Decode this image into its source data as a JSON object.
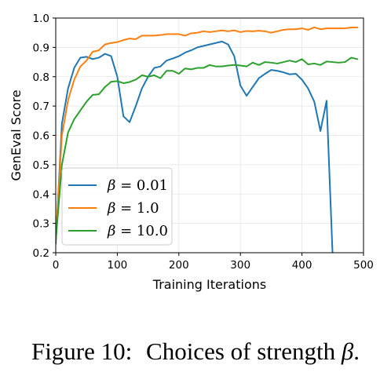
{
  "caption": {
    "label": "Figure 10:",
    "text": "Choices of strength",
    "symbol": "β",
    "end": "."
  },
  "chart_data": {
    "type": "line",
    "title": "",
    "xlabel": "Training Iterations",
    "ylabel": "GenEval Score",
    "xlim": [
      0,
      500
    ],
    "ylim": [
      0.2,
      1.0
    ],
    "xticks": [
      0,
      100,
      200,
      300,
      400,
      500
    ],
    "yticks": [
      0.2,
      0.3,
      0.4,
      0.5,
      0.6,
      0.7,
      0.8,
      0.9,
      1.0
    ],
    "grid": true,
    "legend_position": "lower-left",
    "series": [
      {
        "name": "β = 0.01",
        "symbol": "β",
        "value_label": "= 0.01",
        "color": "#1f77b4",
        "x": [
          0,
          10,
          20,
          30,
          40,
          50,
          60,
          70,
          80,
          90,
          100,
          110,
          120,
          130,
          140,
          150,
          160,
          170,
          180,
          190,
          200,
          210,
          220,
          230,
          240,
          250,
          260,
          270,
          280,
          290,
          300,
          310,
          320,
          330,
          340,
          350,
          360,
          370,
          380,
          390,
          400,
          410,
          420,
          430,
          440,
          450
        ],
        "y": [
          0.23,
          0.64,
          0.76,
          0.83,
          0.865,
          0.868,
          0.86,
          0.865,
          0.878,
          0.87,
          0.8,
          0.665,
          0.645,
          0.7,
          0.76,
          0.8,
          0.83,
          0.835,
          0.855,
          0.862,
          0.87,
          0.882,
          0.89,
          0.9,
          0.905,
          0.91,
          0.915,
          0.92,
          0.91,
          0.87,
          0.77,
          0.735,
          0.765,
          0.795,
          0.81,
          0.823,
          0.82,
          0.815,
          0.808,
          0.81,
          0.79,
          0.76,
          0.715,
          0.615,
          0.718,
          0.18
        ]
      },
      {
        "name": "β = 1.0",
        "symbol": "β",
        "value_label": "= 1.0",
        "color": "#ff7f0e",
        "x": [
          0,
          10,
          20,
          30,
          40,
          50,
          60,
          70,
          80,
          90,
          100,
          110,
          120,
          130,
          140,
          150,
          160,
          170,
          180,
          190,
          200,
          210,
          220,
          230,
          240,
          250,
          260,
          270,
          280,
          290,
          300,
          310,
          320,
          330,
          340,
          350,
          360,
          370,
          380,
          390,
          400,
          410,
          420,
          430,
          440,
          450,
          460,
          470,
          480,
          490
        ],
        "y": [
          0.24,
          0.6,
          0.72,
          0.79,
          0.835,
          0.855,
          0.885,
          0.89,
          0.91,
          0.915,
          0.918,
          0.925,
          0.93,
          0.928,
          0.94,
          0.94,
          0.94,
          0.942,
          0.945,
          0.945,
          0.945,
          0.94,
          0.948,
          0.95,
          0.955,
          0.952,
          0.955,
          0.958,
          0.955,
          0.958,
          0.952,
          0.956,
          0.955,
          0.957,
          0.955,
          0.95,
          0.955,
          0.96,
          0.962,
          0.962,
          0.965,
          0.96,
          0.968,
          0.962,
          0.965,
          0.965,
          0.965,
          0.965,
          0.968,
          0.968
        ]
      },
      {
        "name": "β = 10.0",
        "symbol": "β",
        "value_label": "= 10.0",
        "color": "#2ca02c",
        "x": [
          0,
          10,
          20,
          30,
          40,
          50,
          60,
          70,
          80,
          90,
          100,
          110,
          120,
          130,
          140,
          150,
          160,
          170,
          180,
          190,
          200,
          210,
          220,
          230,
          240,
          250,
          260,
          270,
          280,
          290,
          300,
          310,
          320,
          330,
          340,
          350,
          360,
          370,
          380,
          390,
          400,
          410,
          420,
          430,
          440,
          450,
          460,
          470,
          480,
          490
        ],
        "y": [
          0.24,
          0.5,
          0.61,
          0.655,
          0.685,
          0.715,
          0.738,
          0.74,
          0.765,
          0.783,
          0.785,
          0.778,
          0.782,
          0.79,
          0.805,
          0.8,
          0.805,
          0.795,
          0.82,
          0.82,
          0.81,
          0.828,
          0.825,
          0.83,
          0.83,
          0.84,
          0.835,
          0.835,
          0.838,
          0.84,
          0.838,
          0.835,
          0.848,
          0.84,
          0.85,
          0.848,
          0.845,
          0.85,
          0.855,
          0.85,
          0.86,
          0.842,
          0.845,
          0.84,
          0.852,
          0.85,
          0.848,
          0.85,
          0.865,
          0.86
        ]
      }
    ]
  }
}
